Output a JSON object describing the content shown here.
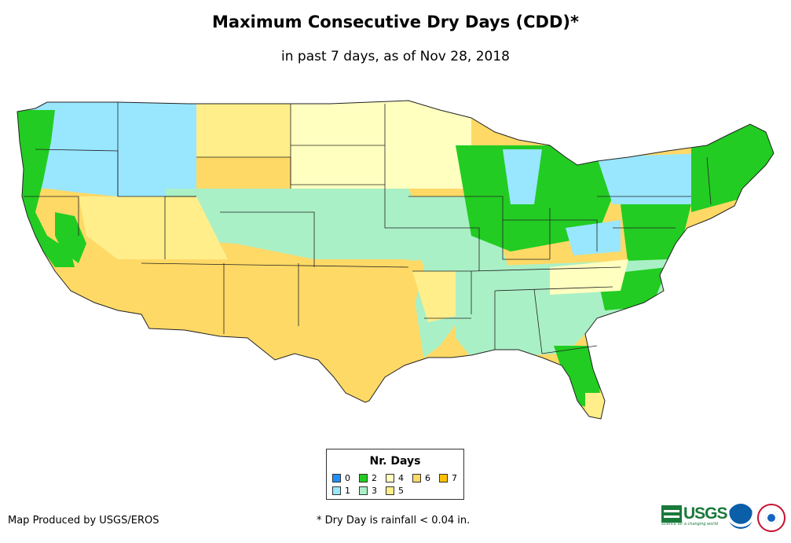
{
  "title": "Maximum Consecutive Dry Days (CDD)*",
  "subtitle": "in past 7 days, as of Nov 28, 2018",
  "legend": {
    "title": "Nr. Days",
    "items": [
      {
        "label": "0",
        "color": "#1e90ff"
      },
      {
        "label": "1",
        "color": "#99e6ff"
      },
      {
        "label": "2",
        "color": "#22cc22"
      },
      {
        "label": "3",
        "color": "#aaf0c6"
      },
      {
        "label": "4",
        "color": "#ffffc0"
      },
      {
        "label": "5",
        "color": "#ffee8a"
      },
      {
        "label": "6",
        "color": "#ffd966"
      },
      {
        "label": "7",
        "color": "#ffc000"
      }
    ]
  },
  "footer": {
    "credit": "Map Produced by USGS/EROS",
    "note": "* Dry Day is rainfall < 0.04 in."
  },
  "logos": {
    "usgs": "USGS",
    "usgs_tagline": "science for a changing world",
    "noaa": "noaa-logo",
    "nws": "nws-logo"
  }
}
